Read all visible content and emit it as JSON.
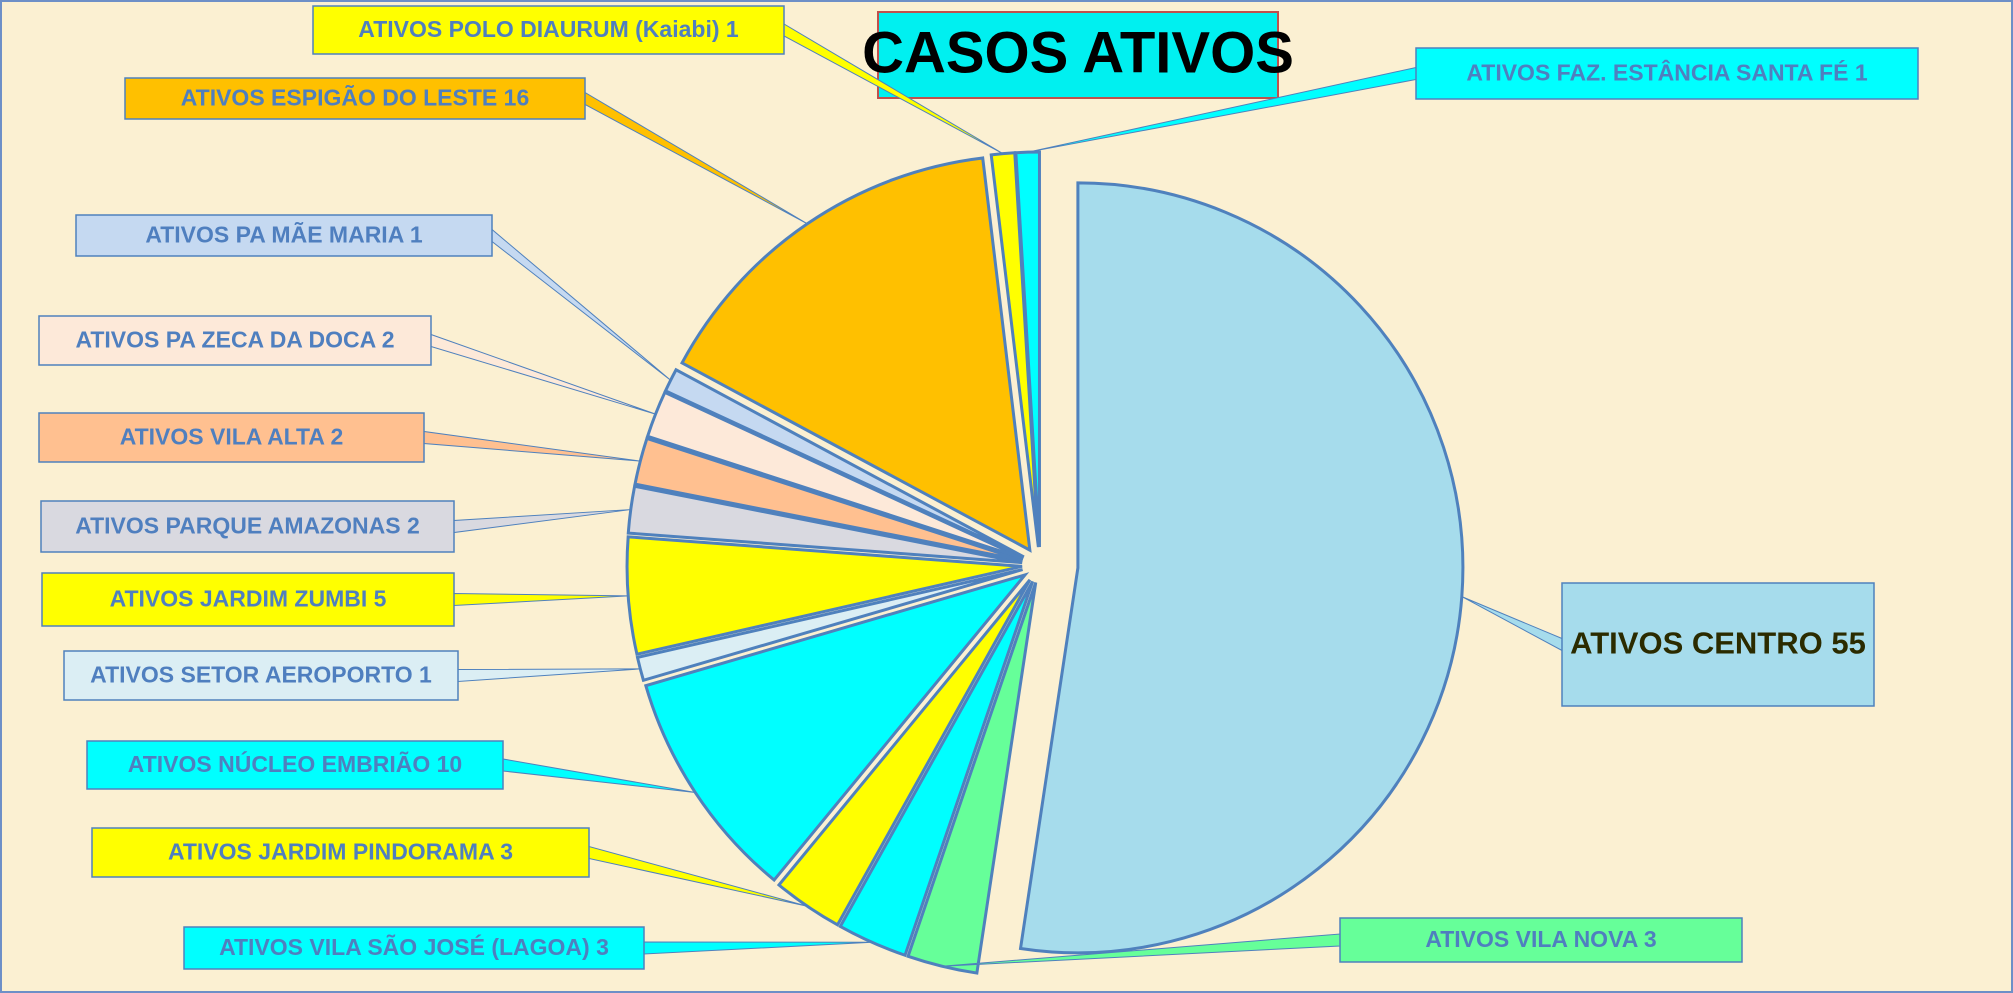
{
  "chart_data": {
    "type": "pie",
    "title": "CASOS ATIVOS",
    "values": [
      55,
      3,
      3,
      3,
      10,
      1,
      5,
      2,
      2,
      2,
      1,
      16,
      1,
      1
    ],
    "value_labels": [
      "ATIVOS CENTRO 55",
      "ATIVOS VILA NOVA 3",
      "ATIVOS VILA SÃO JOSÉ (LAGOA) 3",
      "ATIVOS JARDIM PINDORAMA 3",
      "ATIVOS NÚCLEO EMBRIÃO 10",
      "ATIVOS SETOR AEROPORTO 1",
      "ATIVOS JARDIM ZUMBI 5",
      "ATIVOS PARQUE AMAZONAS 2",
      "ATIVOS VILA ALTA 2",
      "ATIVOS PA ZECA DA DOCA 2",
      "ATIVOS PA MÃE MARIA 1",
      "ATIVOS ESPIGÃO DO LESTE 16",
      "ATIVOS POLO DIAURUM (Kaiabi) 1",
      "ATIVOS FAZ. ESTÂNCIA SANTA FÉ 1"
    ],
    "colors": [
      "#a6dcec",
      "#66ff99",
      "#00ffff",
      "#ffff00",
      "#00ffff",
      "#dbeef4",
      "#ffff00",
      "#d9d9e0",
      "#ffc090",
      "#fde9d9",
      "#c5d9f1",
      "#ffc000",
      "#ffff00",
      "#00ffff"
    ]
  }
}
